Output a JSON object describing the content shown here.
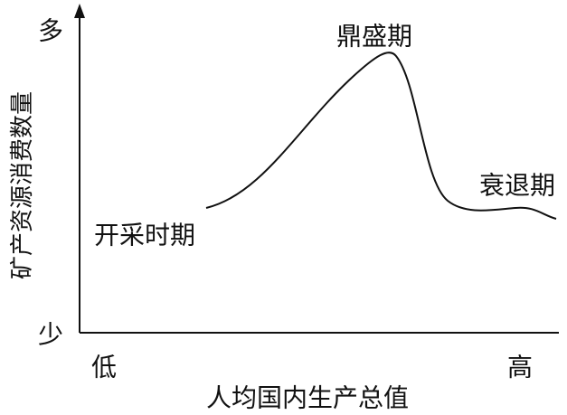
{
  "axes": {
    "y_label": "矿产资源消费数量",
    "y_high": "多",
    "y_low": "少",
    "x_label": "人均国内生产总值",
    "x_low": "低",
    "x_high": "高"
  },
  "stages": {
    "start": "开采时期",
    "peak": "鼎盛期",
    "decline": "衰退期"
  }
}
